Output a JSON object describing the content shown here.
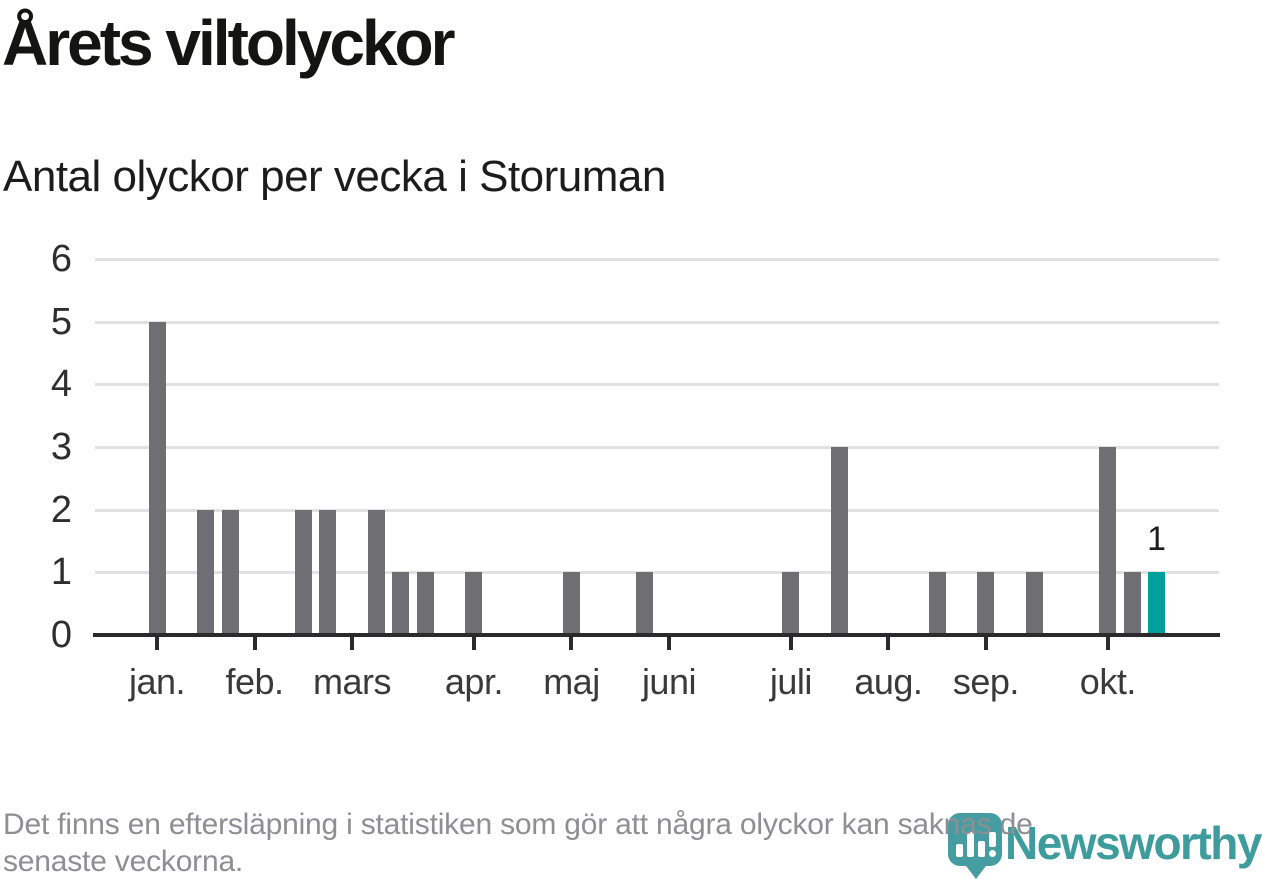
{
  "title": "Årets viltolyckor",
  "subtitle": "Antal olyckor per vecka i Storuman",
  "footer": {
    "lines": [
      "Det finns en eftersläpning i statistiken som gör att några olyckor kan saknas de",
      "senaste veckorna."
    ]
  },
  "logo": {
    "text": "Newsworthy",
    "icon": "newsworthy-barchart-badge-icon"
  },
  "colors": {
    "bar": "#6e6e73",
    "highlight": "#00a19a",
    "grid": "#e1e1e1",
    "axis": "#2b2b2e",
    "footer_text": "#8e8e93",
    "logo_teal": "#459da2",
    "logo_text_teal": "#3f9c9c"
  },
  "chart_data": {
    "type": "bar",
    "title": "Årets viltolyckor",
    "subtitle": "Antal olyckor per vecka i Storuman",
    "xlabel": "",
    "ylabel": "",
    "x_unit": "vecka (jan.–okt.)",
    "ylim": [
      0,
      6
    ],
    "yticks": [
      0,
      1,
      2,
      3,
      4,
      5,
      6
    ],
    "grid": true,
    "first_week": 1,
    "values_by_week": [
      5,
      0,
      2,
      2,
      0,
      0,
      2,
      2,
      0,
      2,
      1,
      1,
      0,
      1,
      0,
      0,
      0,
      1,
      0,
      0,
      1,
      0,
      0,
      0,
      0,
      0,
      1,
      0,
      3,
      0,
      0,
      0,
      1,
      0,
      1,
      0,
      1,
      0,
      0,
      3,
      1,
      1
    ],
    "highlight_week": 42,
    "highlight_label": "1",
    "month_ticks": [
      {
        "label": "jan.",
        "week": 1
      },
      {
        "label": "feb.",
        "week": 5
      },
      {
        "label": "mars",
        "week": 9
      },
      {
        "label": "apr.",
        "week": 14
      },
      {
        "label": "maj",
        "week": 18
      },
      {
        "label": "juni",
        "week": 22
      },
      {
        "label": "juli",
        "week": 27
      },
      {
        "label": "aug.",
        "week": 31
      },
      {
        "label": "sep.",
        "week": 35
      },
      {
        "label": "okt.",
        "week": 40
      }
    ]
  }
}
